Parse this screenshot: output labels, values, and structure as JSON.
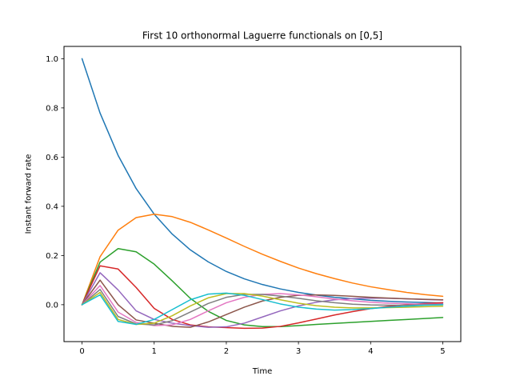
{
  "chart_data": {
    "type": "line",
    "title": "First 10 orthonormal Laguerre functionals on [0,5]",
    "xlabel": "Time",
    "ylabel": "Instant forward rate",
    "xlim": [
      -0.25,
      5.25
    ],
    "ylim": [
      -0.15,
      1.05
    ],
    "xticks": [
      "0",
      "1",
      "2",
      "3",
      "4",
      "5"
    ],
    "yticks": [
      "0.0",
      "0.2",
      "0.4",
      "0.6",
      "0.8",
      "1.0"
    ],
    "grid": false,
    "legend": "none",
    "x": [
      0,
      0.25,
      0.5,
      0.75,
      1,
      1.25,
      1.5,
      1.75,
      2,
      2.25,
      2.5,
      2.75,
      3,
      3.25,
      3.5,
      3.75,
      4,
      4.25,
      4.5,
      4.75,
      5
    ],
    "series": [
      {
        "color": "#1f77b4",
        "values": [
          1.0,
          0.779,
          0.607,
          0.472,
          0.368,
          0.287,
          0.223,
          0.174,
          0.135,
          0.105,
          0.082,
          0.064,
          0.05,
          0.039,
          0.03,
          0.024,
          0.018,
          0.014,
          0.011,
          0.009,
          0.007
        ]
      },
      {
        "color": "#ff7f0e",
        "values": [
          0.0,
          0.195,
          0.303,
          0.354,
          0.368,
          0.358,
          0.335,
          0.304,
          0.271,
          0.237,
          0.205,
          0.176,
          0.149,
          0.126,
          0.106,
          0.088,
          0.073,
          0.061,
          0.05,
          0.041,
          0.034
        ]
      },
      {
        "color": "#2ca02c",
        "values": [
          0.0,
          0.173,
          0.228,
          0.215,
          0.165,
          0.097,
          0.026,
          -0.027,
          -0.064,
          -0.082,
          -0.089,
          -0.089,
          -0.085,
          -0.08,
          -0.076,
          -0.072,
          -0.068,
          -0.064,
          -0.06,
          -0.056,
          -0.052
        ]
      },
      {
        "color": "#d62728",
        "values": [
          0.0,
          0.158,
          0.145,
          0.07,
          -0.015,
          -0.06,
          -0.082,
          -0.09,
          -0.093,
          -0.096,
          -0.095,
          -0.088,
          -0.074,
          -0.058,
          -0.042,
          -0.028,
          -0.016,
          -0.007,
          0.0,
          0.005,
          0.008
        ]
      },
      {
        "color": "#9467bd",
        "values": [
          0.0,
          0.13,
          0.06,
          -0.025,
          -0.06,
          -0.075,
          -0.085,
          -0.092,
          -0.09,
          -0.075,
          -0.05,
          -0.025,
          -0.005,
          0.01,
          0.02,
          0.025,
          0.027,
          0.026,
          0.024,
          0.021,
          0.019
        ]
      },
      {
        "color": "#8c564b",
        "values": [
          0.0,
          0.1,
          0.0,
          -0.062,
          -0.075,
          -0.088,
          -0.092,
          -0.07,
          -0.04,
          -0.01,
          0.015,
          0.03,
          0.038,
          0.04,
          0.038,
          0.034,
          0.03,
          0.027,
          0.024,
          0.022,
          0.02
        ]
      },
      {
        "color": "#e377c2",
        "values": [
          0.0,
          0.078,
          -0.03,
          -0.072,
          -0.085,
          -0.082,
          -0.06,
          -0.025,
          0.008,
          0.03,
          0.042,
          0.045,
          0.04,
          0.032,
          0.023,
          0.016,
          0.01,
          0.006,
          0.004,
          0.002,
          0.002
        ]
      },
      {
        "color": "#7f7f7f",
        "values": [
          0.0,
          0.062,
          -0.048,
          -0.078,
          -0.082,
          -0.065,
          -0.03,
          0.005,
          0.03,
          0.042,
          0.042,
          0.035,
          0.026,
          0.016,
          0.008,
          0.002,
          -0.001,
          -0.002,
          -0.002,
          -0.001,
          0.0
        ]
      },
      {
        "color": "#bcbd22",
        "values": [
          0.0,
          0.05,
          -0.06,
          -0.08,
          -0.075,
          -0.045,
          -0.005,
          0.028,
          0.045,
          0.045,
          0.035,
          0.02,
          0.006,
          -0.004,
          -0.01,
          -0.013,
          -0.013,
          -0.012,
          -0.01,
          -0.008,
          -0.006
        ]
      },
      {
        "color": "#17becf",
        "values": [
          0.0,
          0.04,
          -0.068,
          -0.08,
          -0.06,
          -0.02,
          0.02,
          0.043,
          0.047,
          0.038,
          0.021,
          0.003,
          -0.01,
          -0.018,
          -0.022,
          -0.02,
          -0.016,
          -0.01,
          -0.006,
          -0.002,
          0.0
        ]
      }
    ]
  }
}
